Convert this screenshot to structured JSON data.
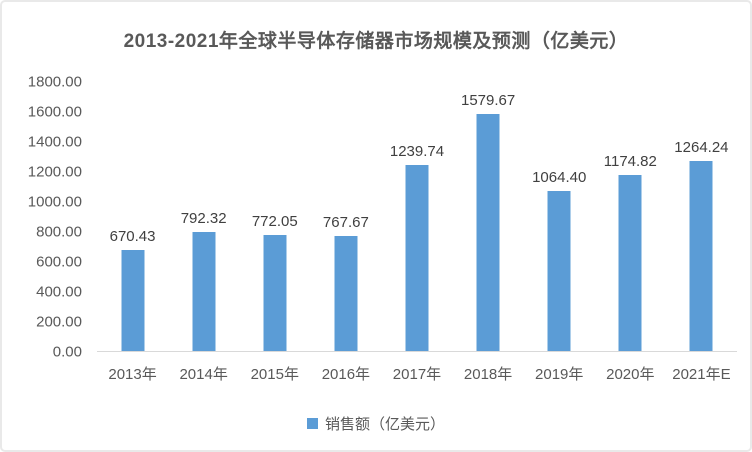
{
  "chart_data": {
    "type": "bar",
    "title": "2013-2021年全球半导体存储器市场规模及预测（亿美元）",
    "categories": [
      "2013年",
      "2014年",
      "2015年",
      "2016年",
      "2017年",
      "2018年",
      "2019年",
      "2020年",
      "2021年E"
    ],
    "values": [
      670.43,
      792.32,
      772.05,
      767.67,
      1239.74,
      1579.67,
      1064.4,
      1174.82,
      1264.24
    ],
    "value_labels": [
      "670.43",
      "792.32",
      "772.05",
      "767.67",
      "1239.74",
      "1579.67",
      "1064.40",
      "1174.82",
      "1264.24"
    ],
    "series_name": "销售额（亿美元）",
    "legend": [
      "销售额（亿美元）"
    ],
    "xlabel": "",
    "ylabel": "",
    "ylim": [
      0,
      1800
    ],
    "y_ticks": [
      "1800.00",
      "1600.00",
      "1400.00",
      "1200.00",
      "1000.00",
      "800.00",
      "600.00",
      "400.00",
      "200.00",
      "0.00"
    ],
    "grid": false,
    "legend_position": "bottom-center"
  },
  "colors": {
    "bar": "#5B9CD6",
    "title_text": "#595959",
    "axis_text": "#595959",
    "data_label_text": "#404040",
    "axis_line": "#D9D9D9",
    "card_border": "#E9E9E9"
  }
}
